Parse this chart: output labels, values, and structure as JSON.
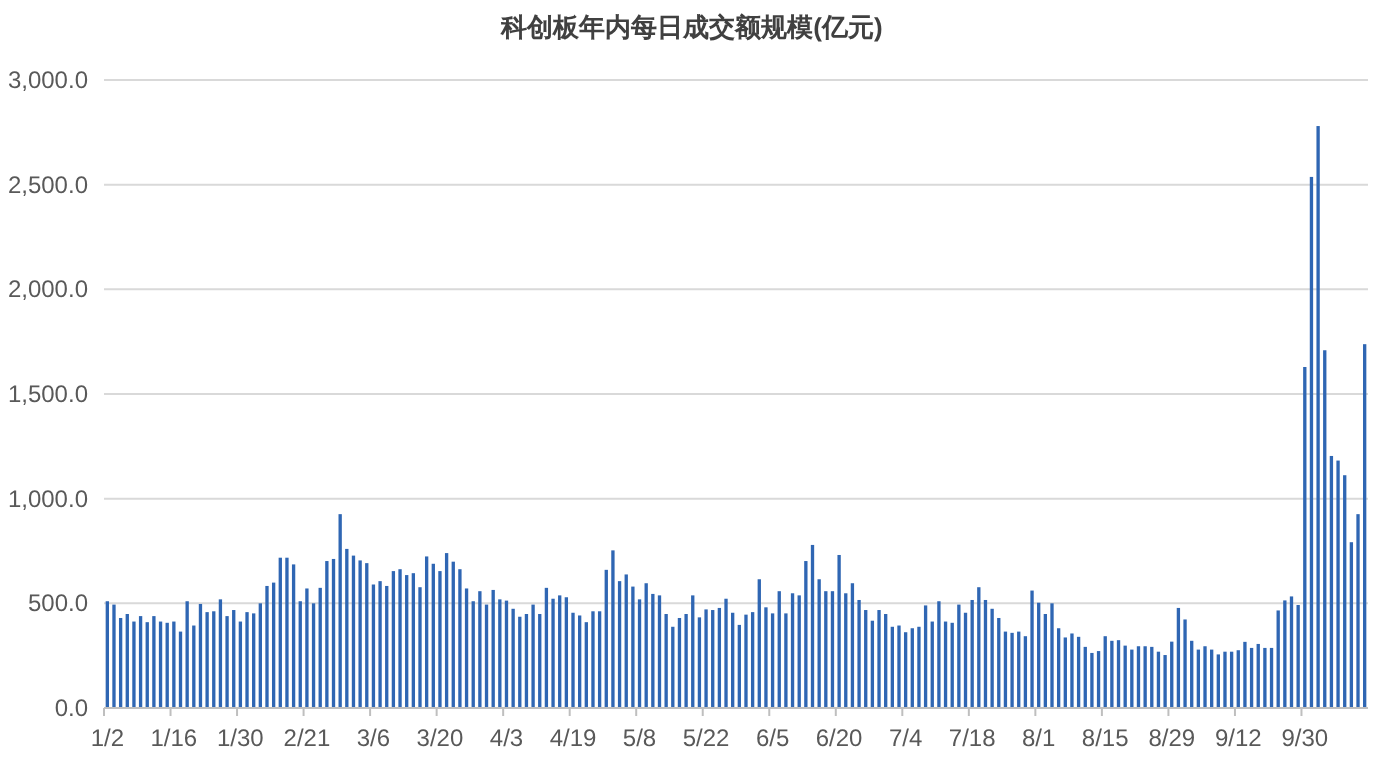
{
  "chart_data": {
    "type": "bar",
    "title": "科创板年内每日成交额规模(亿元)",
    "categories": [
      "1/2",
      null,
      null,
      null,
      null,
      null,
      null,
      null,
      null,
      null,
      "1/16",
      null,
      null,
      null,
      null,
      null,
      null,
      null,
      null,
      null,
      "1/30",
      null,
      null,
      null,
      null,
      null,
      null,
      null,
      null,
      null,
      "2/21",
      null,
      null,
      null,
      null,
      null,
      null,
      null,
      null,
      null,
      "3/6",
      null,
      null,
      null,
      null,
      null,
      null,
      null,
      null,
      null,
      "3/20",
      null,
      null,
      null,
      null,
      null,
      null,
      null,
      null,
      null,
      "4/3",
      null,
      null,
      null,
      null,
      null,
      null,
      null,
      null,
      null,
      "4/19",
      null,
      null,
      null,
      null,
      null,
      null,
      null,
      null,
      null,
      "5/8",
      null,
      null,
      null,
      null,
      null,
      null,
      null,
      null,
      null,
      "5/22",
      null,
      null,
      null,
      null,
      null,
      null,
      null,
      null,
      null,
      "6/5",
      null,
      null,
      null,
      null,
      null,
      null,
      null,
      null,
      null,
      "6/20",
      null,
      null,
      null,
      null,
      null,
      null,
      null,
      null,
      null,
      "7/4",
      null,
      null,
      null,
      null,
      null,
      null,
      null,
      null,
      null,
      "7/18",
      null,
      null,
      null,
      null,
      null,
      null,
      null,
      null,
      null,
      "8/1",
      null,
      null,
      null,
      null,
      null,
      null,
      null,
      null,
      null,
      "8/15",
      null,
      null,
      null,
      null,
      null,
      null,
      null,
      null,
      null,
      "8/29",
      null,
      null,
      null,
      null,
      null,
      null,
      null,
      null,
      null,
      "9/12",
      null,
      null,
      null,
      null,
      null,
      null,
      null,
      null,
      null,
      "9/30",
      null,
      null,
      null,
      null,
      null,
      null,
      null,
      null,
      null
    ],
    "values": [
      510,
      494,
      430,
      449,
      413,
      439,
      410,
      439,
      413,
      407,
      413,
      365,
      510,
      394,
      497,
      458,
      462,
      519,
      439,
      468,
      413,
      458,
      452,
      500,
      583,
      599,
      718,
      718,
      686,
      510,
      571,
      500,
      574,
      702,
      712,
      926,
      760,
      728,
      705,
      692,
      590,
      606,
      583,
      654,
      663,
      635,
      644,
      577,
      724,
      689,
      654,
      740,
      699,
      663,
      571,
      510,
      558,
      494,
      564,
      519,
      513,
      474,
      436,
      449,
      494,
      449,
      574,
      522,
      538,
      529,
      455,
      442,
      410,
      462,
      462,
      660,
      753,
      606,
      638,
      580,
      519,
      596,
      545,
      538,
      449,
      388,
      430,
      449,
      538,
      433,
      471,
      468,
      478,
      522,
      455,
      397,
      446,
      458,
      615,
      481,
      452,
      558,
      452,
      548,
      538,
      702,
      779,
      615,
      558,
      558,
      731,
      548,
      596,
      516,
      468,
      417,
      468,
      449,
      388,
      394,
      362,
      381,
      388,
      490,
      413,
      510,
      413,
      407,
      494,
      455,
      516,
      577,
      516,
      474,
      430,
      365,
      359,
      365,
      343,
      561,
      503,
      449,
      500,
      381,
      337,
      356,
      340,
      292,
      263,
      272,
      343,
      321,
      324,
      298,
      279,
      295,
      295,
      292,
      269,
      253,
      317,
      478,
      423,
      321,
      279,
      295,
      279,
      256,
      269,
      269,
      276,
      316,
      287,
      306,
      287,
      287,
      466,
      514,
      533,
      492,
      1629,
      2537,
      2780,
      1709,
      1204,
      1182,
      1112,
      792,
      926,
      1738
    ],
    "color": "#2f66b3",
    "ylim": [
      0,
      3000
    ],
    "yticks": [
      {
        "value": 0,
        "label": "0.0"
      },
      {
        "value": 500,
        "label": "500.0"
      },
      {
        "value": 1000,
        "label": "1,000.0"
      },
      {
        "value": 1500,
        "label": "1,500.0"
      },
      {
        "value": 2000,
        "label": "2,000.0"
      },
      {
        "value": 2500,
        "label": "2,500.0"
      },
      {
        "value": 3000,
        "label": "3,000.0"
      }
    ],
    "grid": "y"
  }
}
